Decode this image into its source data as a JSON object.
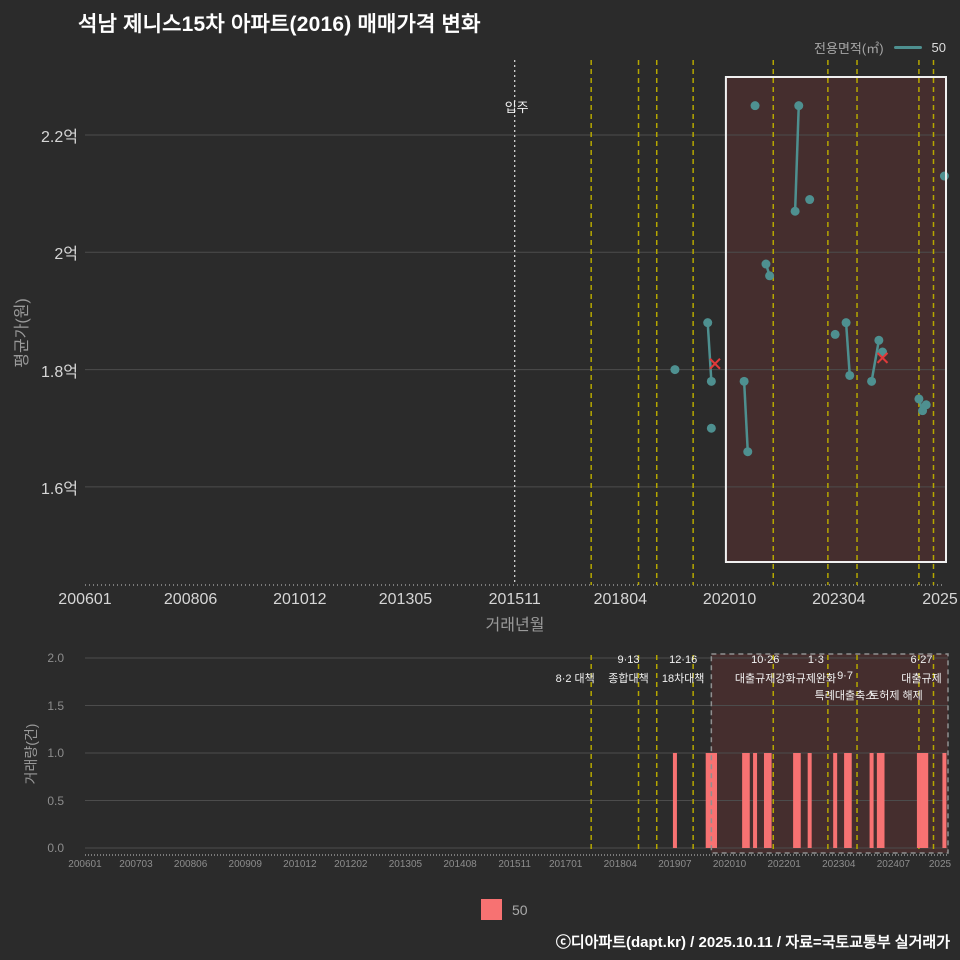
{
  "title": "석남 제니스15차 아파트(2016) 매매가격 변화",
  "legend_top": {
    "label": "전용면적(㎡)",
    "series": "50"
  },
  "legend_bottom": {
    "series": "50"
  },
  "footer": "ⓒ디아파트(dapt.kr) / 2025.10.11 / 자료=국토교통부 실거래가",
  "colors": {
    "background": "#2b2b2b",
    "series_teal": "#4e9090",
    "bar_red": "#f77272",
    "policy_yellow": "#b5a700",
    "grid": "#4c4c4c",
    "box_fill": "rgba(220,70,70,0.15)",
    "box_border": "#f0f0f0",
    "dashed_box_border": "#909090",
    "cancel_x": "#e03a3a",
    "axis_dots": "#c8c8c8"
  },
  "policies": [
    {
      "date": "2017-08",
      "name": "8·2 대책",
      "dx": -16,
      "rows": [
        "",
        "8·2 대책",
        ""
      ]
    },
    {
      "date": "2018-09",
      "name": "9·13 종합대책",
      "dx": -10,
      "rows": [
        "9·13",
        "종합대책",
        ""
      ]
    },
    {
      "date": "2019-02",
      "dx": 0,
      "rows": [
        "",
        "",
        ""
      ]
    },
    {
      "date": "2019-12",
      "name": "12·16 18차대책",
      "dx": -10,
      "rows": [
        "12·16",
        "18차대책",
        ""
      ]
    },
    {
      "date": "2021-10",
      "name": "10·26 대출규제강화",
      "dx": -8,
      "rows": [
        "10·26",
        "대출규제강화",
        ""
      ]
    },
    {
      "date": "2023-01",
      "name": "1·3 규제완화",
      "dx": -12,
      "rows": [
        "1·3",
        "규제완화",
        ""
      ]
    },
    {
      "date": "2023-09",
      "name": "9·7 특례대출축소",
      "dx": -12,
      "rows": [
        "",
        "9·7",
        "특례대출축소"
      ]
    },
    {
      "date": "2025-02",
      "name": "토허제 해제",
      "dx": -23,
      "rows": [
        "",
        "",
        "토허제 해제"
      ]
    },
    {
      "date": "2025-06",
      "name": "6·27 대출규제",
      "dx": -12,
      "rows": [
        "6·27",
        "대출규제",
        ""
      ]
    }
  ],
  "chart_data": [
    {
      "type": "line",
      "name": "매매 평균가 추이",
      "series_name": "50",
      "ylabel": "평균가(원)",
      "xlabel": "거래년월",
      "y_unit": "억원",
      "ylim": [
        1.43,
        2.33
      ],
      "x_range": [
        "2006-01",
        "2025-10"
      ],
      "grid": true,
      "yticks": [
        {
          "label": "2.2억",
          "value": 2.2
        },
        {
          "label": "2억",
          "value": 2.0
        },
        {
          "label": "1.8억",
          "value": 1.8
        },
        {
          "label": "1.6억",
          "value": 1.6
        }
      ],
      "xticks": [
        {
          "label": "200601",
          "date": "2006-01"
        },
        {
          "label": "200806",
          "date": "2008-06"
        },
        {
          "label": "201012",
          "date": "2010-12"
        },
        {
          "label": "201305",
          "date": "2013-05"
        },
        {
          "label": "201511",
          "date": "2015-11"
        },
        {
          "label": "201804",
          "date": "2018-04"
        },
        {
          "label": "202010",
          "date": "2020-10"
        },
        {
          "label": "202304",
          "date": "2023-04"
        },
        {
          "label": "2025",
          "x": 940
        }
      ],
      "movein": {
        "date": "2015-11",
        "label": "입주"
      },
      "highlight_box": {
        "x0": "2020-09",
        "x1": "2025-10"
      },
      "segments": [
        [
          {
            "m": "2019-07",
            "p": 1.8
          }
        ],
        [
          {
            "m": "2020-04",
            "p": 1.88
          },
          {
            "m": "2020-05",
            "p": 1.78
          }
        ],
        [
          {
            "m": "2020-05",
            "p": 1.7
          }
        ],
        [
          {
            "m": "2021-02",
            "p": 1.78
          },
          {
            "m": "2021-03",
            "p": 1.66
          }
        ],
        [
          {
            "m": "2021-05",
            "p": 2.25
          }
        ],
        [
          {
            "m": "2021-08",
            "p": 1.98
          },
          {
            "m": "2021-09",
            "p": 1.96
          }
        ],
        [
          {
            "m": "2022-04",
            "p": 2.07
          },
          {
            "m": "2022-05",
            "p": 2.25
          }
        ],
        [
          {
            "m": "2022-08",
            "p": 2.09
          }
        ],
        [
          {
            "m": "2023-03",
            "p": 1.86
          }
        ],
        [
          {
            "m": "2023-06",
            "p": 1.88
          },
          {
            "m": "2023-07",
            "p": 1.79
          }
        ],
        [
          {
            "m": "2024-01",
            "p": 1.78
          },
          {
            "m": "2024-03",
            "p": 1.85
          }
        ],
        [
          {
            "m": "2024-04",
            "p": 1.83
          }
        ],
        [
          {
            "m": "2025-02",
            "p": 1.75
          },
          {
            "m": "2025-03",
            "p": 1.73
          }
        ],
        [
          {
            "m": "2025-04",
            "p": 1.74
          }
        ],
        [
          {
            "m": "2025-09",
            "p": 2.13
          }
        ]
      ],
      "canceled": [
        {
          "m": "2020-06",
          "p": 1.81
        },
        {
          "m": "2024-04",
          "p": 1.82
        }
      ]
    },
    {
      "type": "bar",
      "name": "월별 거래량",
      "series_name": "50",
      "ylabel": "거래량(건)",
      "xlabel": "",
      "ylim": [
        0,
        2
      ],
      "grid": true,
      "yticks": [
        {
          "label": "2.0",
          "value": 2.0
        },
        {
          "label": "1.5",
          "value": 1.5
        },
        {
          "label": "1.0",
          "value": 1.0
        },
        {
          "label": "0.5",
          "value": 0.5
        },
        {
          "label": "0.0",
          "value": 0.0
        }
      ],
      "xticks": [
        {
          "label": "200601",
          "date": "2006-01"
        },
        {
          "label": "200703",
          "date": "2007-03"
        },
        {
          "label": "200806",
          "date": "2008-06"
        },
        {
          "label": "200909",
          "date": "2009-09"
        },
        {
          "label": "201012",
          "date": "2010-12"
        },
        {
          "label": "201202",
          "date": "2012-02"
        },
        {
          "label": "201305",
          "date": "2013-05"
        },
        {
          "label": "201408",
          "date": "2014-08"
        },
        {
          "label": "201511",
          "date": "2015-11"
        },
        {
          "label": "201701",
          "date": "2017-01"
        },
        {
          "label": "201804",
          "date": "2018-04"
        },
        {
          "label": "201907",
          "date": "2019-07"
        },
        {
          "label": "202010",
          "date": "2020-10"
        },
        {
          "label": "202201",
          "date": "2022-01"
        },
        {
          "label": "202304",
          "date": "2023-04"
        },
        {
          "label": "202407",
          "date": "2024-07"
        },
        {
          "label": "2025",
          "x": 940
        }
      ],
      "months": [
        "2019-07",
        "2020-04",
        "2020-05",
        "2020-06",
        "2021-02",
        "2021-03",
        "2021-05",
        "2021-08",
        "2021-09",
        "2022-04",
        "2022-05",
        "2022-08",
        "2023-03",
        "2023-06",
        "2023-07",
        "2024-01",
        "2024-03",
        "2024-04",
        "2025-02",
        "2025-03",
        "2025-04",
        "2025-09"
      ],
      "values": [
        1,
        1,
        1,
        1,
        1,
        1,
        1,
        1,
        1,
        1,
        1,
        1,
        1,
        1,
        1,
        1,
        1,
        1,
        1,
        1,
        1,
        1
      ],
      "highlight_box": {
        "x0": "2020-05",
        "x1": "2025-10"
      }
    }
  ]
}
